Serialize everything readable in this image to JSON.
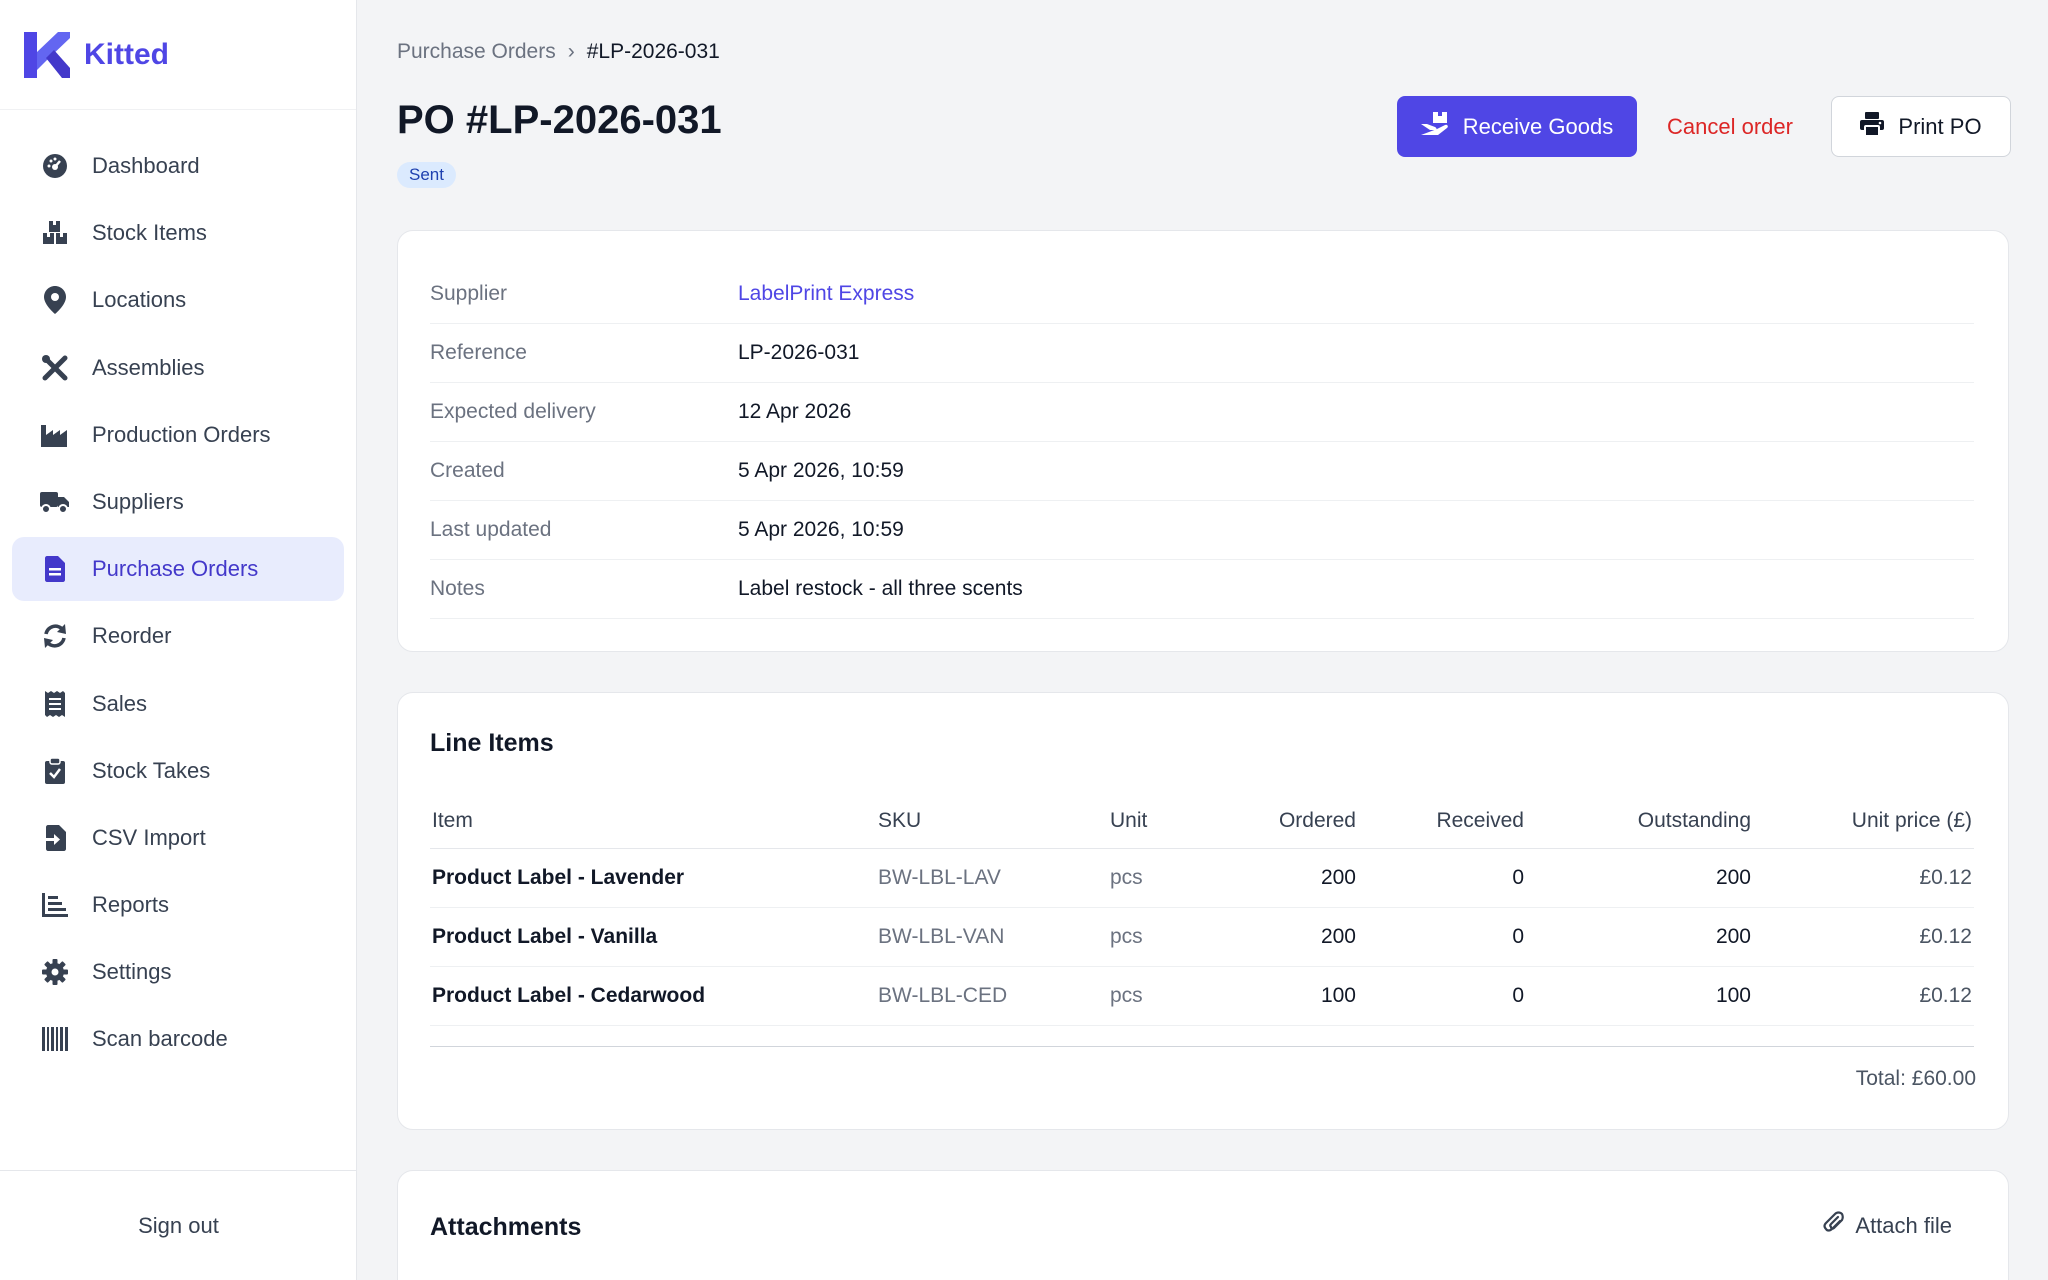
{
  "brand": {
    "name": "Kitted",
    "accent": "#4f46e5"
  },
  "sidebar": {
    "items": [
      {
        "label": "Dashboard",
        "icon": "dashboard-icon"
      },
      {
        "label": "Stock Items",
        "icon": "boxes-icon"
      },
      {
        "label": "Locations",
        "icon": "map-pin-icon"
      },
      {
        "label": "Assemblies",
        "icon": "tools-icon"
      },
      {
        "label": "Production Orders",
        "icon": "factory-icon"
      },
      {
        "label": "Suppliers",
        "icon": "truck-icon"
      },
      {
        "label": "Purchase Orders",
        "icon": "file-icon",
        "active": true
      },
      {
        "label": "Reorder",
        "icon": "refresh-icon"
      },
      {
        "label": "Sales",
        "icon": "receipt-icon"
      },
      {
        "label": "Stock Takes",
        "icon": "clipboard-check-icon"
      },
      {
        "label": "CSV Import",
        "icon": "file-import-icon"
      },
      {
        "label": "Reports",
        "icon": "bar-chart-icon"
      },
      {
        "label": "Settings",
        "icon": "gear-icon"
      },
      {
        "label": "Scan barcode",
        "icon": "barcode-icon"
      }
    ],
    "sign_out": "Sign out"
  },
  "breadcrumb": {
    "parent": "Purchase Orders",
    "separator": "›",
    "current": "#LP-2026-031"
  },
  "header": {
    "title": "PO #LP-2026-031",
    "status": "Sent",
    "receive_label": "Receive Goods",
    "cancel_label": "Cancel order",
    "print_label": "Print PO"
  },
  "details": [
    {
      "label": "Supplier",
      "value": "LabelPrint Express"
    },
    {
      "label": "Reference",
      "value": "LP-2026-031"
    },
    {
      "label": "Expected delivery",
      "value": "12 Apr 2026"
    },
    {
      "label": "Created",
      "value": "5 Apr 2026, 10:59"
    },
    {
      "label": "Last updated",
      "value": "5 Apr 2026, 10:59"
    },
    {
      "label": "Notes",
      "value": "Label restock - all three scents"
    }
  ],
  "line_items": {
    "title": "Line Items",
    "columns": [
      "Item",
      "SKU",
      "Unit",
      "Ordered",
      "Received",
      "Outstanding",
      "Unit price (£)"
    ],
    "rows": [
      {
        "item": "Product Label - Lavender",
        "sku": "BW-LBL-LAV",
        "unit": "pcs",
        "ordered": "200",
        "received": "0",
        "outstanding": "200",
        "price": "£0.12"
      },
      {
        "item": "Product Label - Vanilla",
        "sku": "BW-LBL-VAN",
        "unit": "pcs",
        "ordered": "200",
        "received": "0",
        "outstanding": "200",
        "price": "£0.12"
      },
      {
        "item": "Product Label - Cedarwood",
        "sku": "BW-LBL-CED",
        "unit": "pcs",
        "ordered": "100",
        "received": "0",
        "outstanding": "100",
        "price": "£0.12"
      }
    ],
    "total": "Total: £60.00"
  },
  "attachments": {
    "title": "Attachments",
    "attach_label": "Attach file"
  }
}
